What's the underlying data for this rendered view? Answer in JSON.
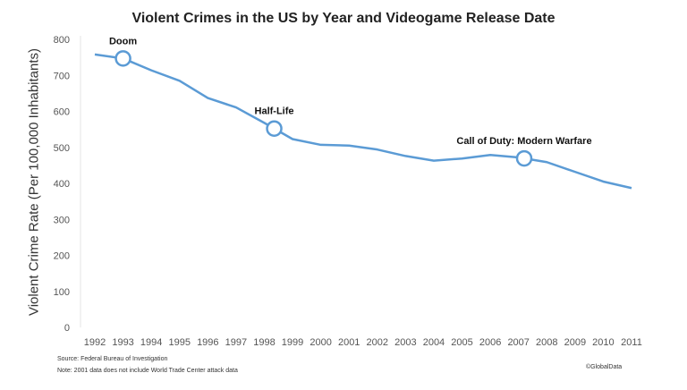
{
  "chart_data": {
    "type": "line",
    "title": "Violent Crimes in the US by Year and Videogame Release Date",
    "ylabel": "Violent Crime Rate (Per 100,000 Inhabitants)",
    "xlabel": "",
    "ylim": [
      0,
      800
    ],
    "yticks": [
      "0",
      "100",
      "200",
      "300",
      "400",
      "500",
      "600",
      "700",
      "800"
    ],
    "categories": [
      "1992",
      "1993",
      "1994",
      "1995",
      "1996",
      "1997",
      "1998",
      "1999",
      "2000",
      "2001",
      "2002",
      "2003",
      "2004",
      "2005",
      "2006",
      "2007",
      "2008",
      "2009",
      "2010",
      "2011"
    ],
    "values": [
      758,
      747,
      714,
      685,
      637,
      611,
      568,
      523,
      507,
      505,
      494,
      476,
      463,
      469,
      479,
      472,
      459,
      432,
      405,
      387
    ],
    "grid": false,
    "color": "#5b9bd5",
    "annotations": [
      {
        "label": "Doom",
        "x": 1993.0
      },
      {
        "label": "Half-Life",
        "x": 1998.35
      },
      {
        "label": "Call of Duty: Modern Warfare",
        "x": 2007.2
      }
    ]
  },
  "footer": {
    "source": "Source: Federal Bureau of Investigation",
    "note": "Note: 2001 data does not include World Trade Center attack data",
    "credit": "©GlobalData"
  }
}
